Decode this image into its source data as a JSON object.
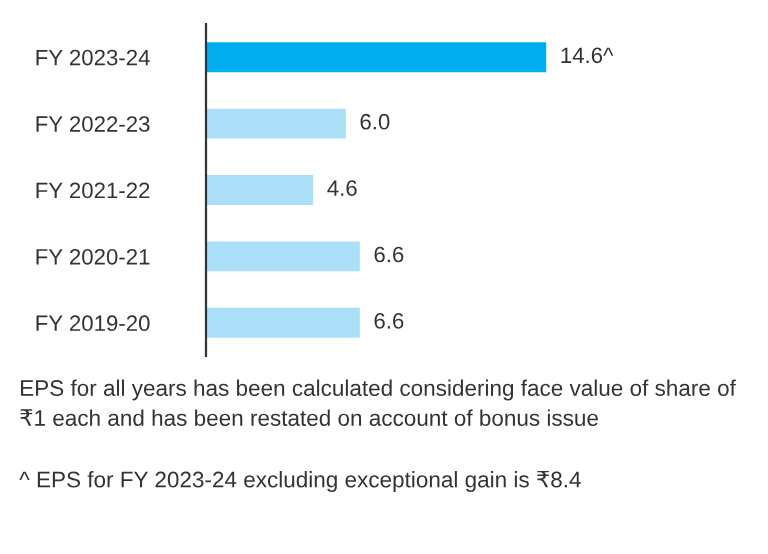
{
  "chart_data": {
    "type": "bar",
    "orientation": "horizontal",
    "categories": [
      "FY 2023-24",
      "FY 2022-23",
      "FY 2021-22",
      "FY 2020-21",
      "FY 2019-20"
    ],
    "values": [
      14.6,
      6.0,
      4.6,
      6.6,
      6.6
    ],
    "colors": [
      "#00aeef",
      "#aadff7",
      "#aadff7",
      "#aadff7",
      "#aadff7"
    ],
    "value_labels": [
      "14.6^",
      "6.0",
      "4.6",
      "6.6",
      "6.6"
    ],
    "grid": false,
    "legend": false,
    "annotations": [
      "EPS for all years has been calculated considering face value of share of ₹1 each and has been restated on account of bonus issue",
      "^ EPS for FY 2023-24 excluding exceptional gain is ₹8.4"
    ]
  }
}
